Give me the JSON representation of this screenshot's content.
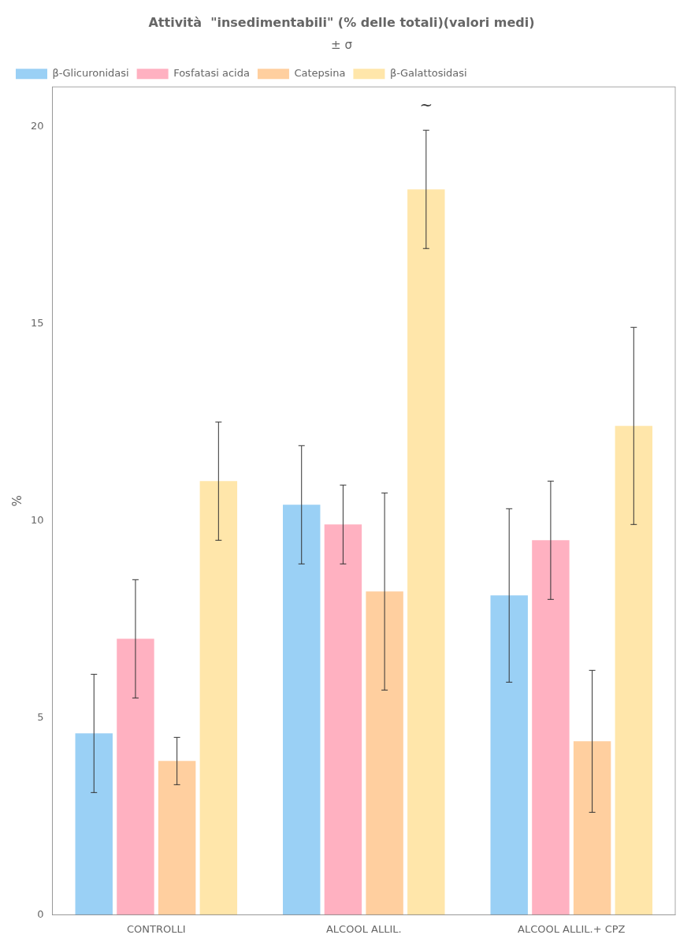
{
  "chart_data": {
    "type": "bar",
    "title": "Attività  \"insedimentabili\" (% delle totali)(valori medi)",
    "subtitle": "± σ",
    "ylabel": "%",
    "categories": [
      "CONTROLLI",
      "ALCOOL ALLIL.",
      "ALCOOL ALLIL.+ CPZ"
    ],
    "series": [
      {
        "name": "β-Glicuronidasi",
        "values": [
          4.6,
          10.4,
          8.1
        ],
        "errors": [
          1.5,
          1.5,
          2.2
        ]
      },
      {
        "name": "Fosfatasi acida",
        "values": [
          7.0,
          9.9,
          9.5
        ],
        "errors": [
          1.5,
          1.0,
          1.5
        ]
      },
      {
        "name": "Catepsina",
        "values": [
          3.9,
          8.2,
          4.4
        ],
        "errors": [
          0.6,
          2.5,
          1.8
        ]
      },
      {
        "name": "β-Galattosidasi",
        "values": [
          11.0,
          18.4,
          12.4
        ],
        "errors": [
          1.5,
          1.5,
          2.5
        ]
      }
    ],
    "annotations": [
      {
        "text": "~",
        "x": "ALCOOL ALLIL.",
        "series": "β-Galattosidasi",
        "y": 20.3
      }
    ],
    "ylim": [
      0,
      21
    ],
    "yticks": [
      0,
      5,
      10,
      15,
      20
    ],
    "grid": false,
    "legend": "upper left"
  }
}
